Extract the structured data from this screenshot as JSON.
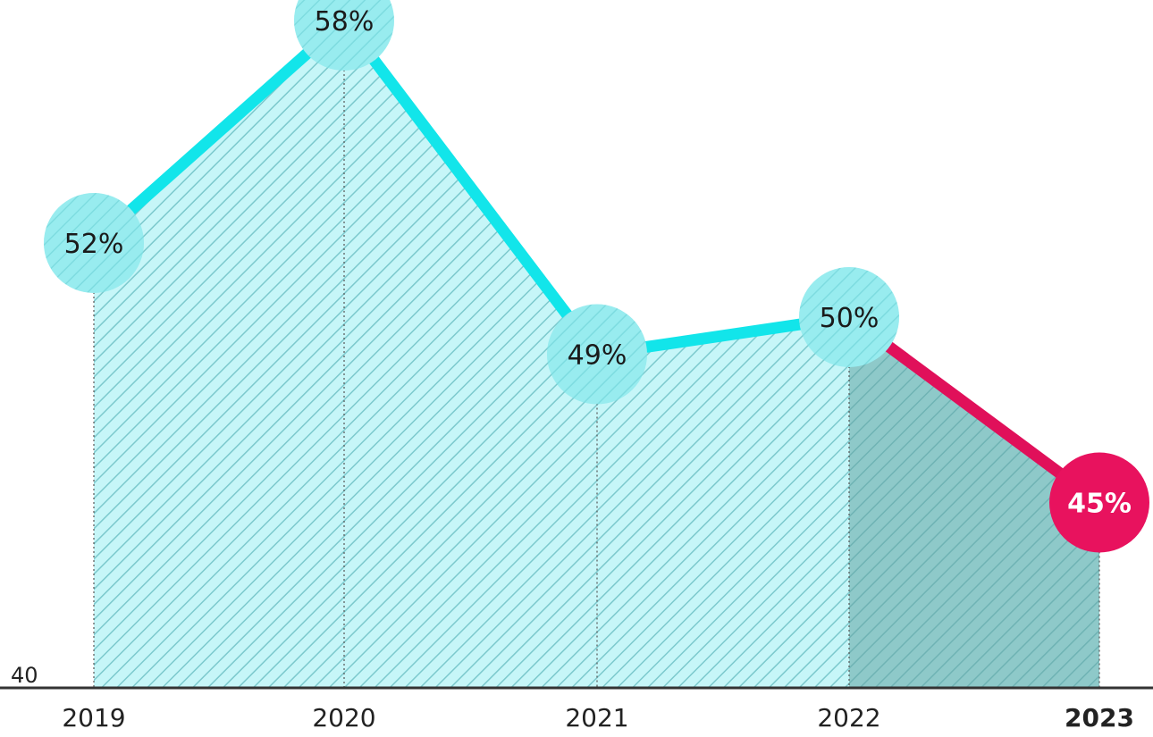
{
  "chart_data": {
    "type": "area",
    "title": "",
    "xlabel": "",
    "ylabel": "",
    "x": [
      "2019",
      "2020",
      "2021",
      "2022",
      "2023"
    ],
    "highlight_x": "2023",
    "series": [
      {
        "values": [
          52,
          58,
          49,
          50,
          45
        ],
        "labels": [
          "52%",
          "58%",
          "49%",
          "50%",
          "45%"
        ]
      }
    ],
    "ylim": [
      40,
      60
    ],
    "baseline_label": "40",
    "grid": false,
    "colors": {
      "line": "#12e5ea",
      "marker": "#7fe6ea",
      "area": "#c6f6f8",
      "hatch": "#7cc9cd",
      "highlight_line": "#e0105a",
      "highlight_marker": "#e8125e",
      "highlight_area": "#8ec9c9",
      "highlight_label": "#ffffff",
      "label": "#1a1a1a",
      "axis": "#333333"
    }
  }
}
